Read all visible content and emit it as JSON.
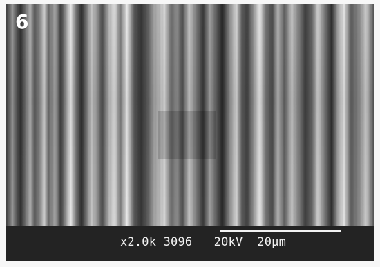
{
  "panel": {
    "label": "6"
  },
  "scale_bar": {
    "text": "x2.0k 3096   20kV  20µm"
  }
}
